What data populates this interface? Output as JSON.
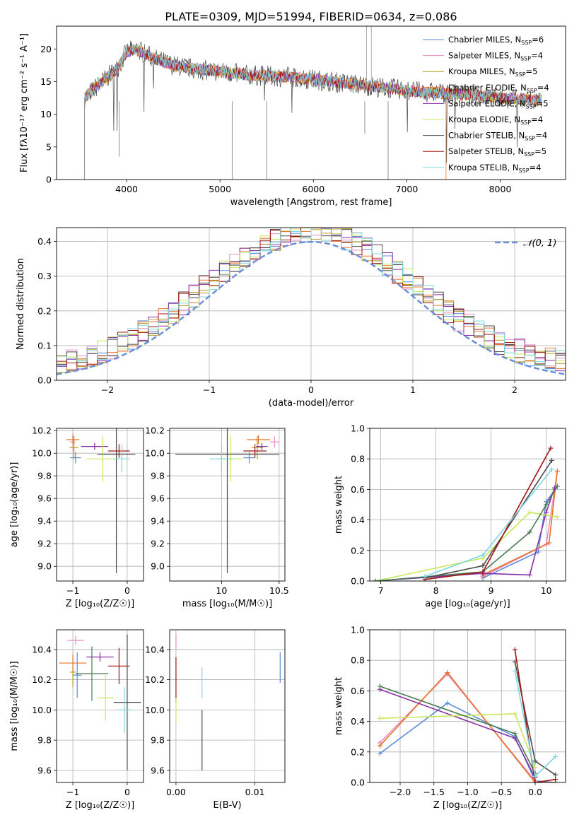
{
  "title": "PLATE=0309, MJD=51994, FIBERID=0634, z=0.086",
  "colors": {
    "chabrier_miles": "#5b8bd9",
    "salpeter_miles": "#e98cc6",
    "kroupa_miles": "#b59a1d",
    "chabrier_elodie": "#e8742a",
    "salpeter_elodie": "#8a2ea8",
    "kroupa_elodie": "#c8e85a",
    "chabrier_stelib": "#4a4a4a",
    "salpeter_stelib": "#a01414",
    "kroupa_stelib": "#7fd6e0",
    "hist_gauss": "#6a8fd8",
    "green_series": "#4a7a52"
  },
  "chart_data": [
    {
      "id": "spectrum",
      "type": "line",
      "xlabel": "wavelength [Angstrom, rest frame]",
      "ylabel": "Flux [fλ10⁻¹⁷ erg cm⁻² s⁻¹ A⁻¹]",
      "xlim": [
        3250,
        8700
      ],
      "ylim": [
        0,
        23.5
      ],
      "xticks": [
        4000,
        5000,
        6000,
        7000,
        8000
      ],
      "yticks": [
        0,
        5,
        10,
        15,
        20
      ],
      "grid": false,
      "legend_position": "top-right",
      "legend": [
        "Chabrier MILES, N_SSP=6",
        "Salpeter MILES, N_SSP=4",
        "Kroupa MILES, N_SSP=5",
        "Chabrier ELODIE, N_SSP=4",
        "Salpeter ELODIE, N_SSP=5",
        "Kroupa ELODIE, N_SSP=4",
        "Chabrier STELIB, N_SSP=4",
        "Salpeter STELIB, N_SSP=5",
        "Kroupa STELIB, N_SSP=4"
      ],
      "envelope": {
        "x": [
          3550,
          3700,
          3900,
          4000,
          4100,
          4300,
          4500,
          4700,
          5000,
          5300,
          5600,
          5900,
          6200,
          6500,
          6800,
          7100,
          7400,
          7700,
          8000,
          8200,
          8400
        ],
        "y": [
          12.5,
          14.5,
          17.0,
          19.5,
          20.0,
          18.5,
          17.5,
          17.0,
          16.5,
          16.0,
          15.8,
          15.5,
          15.0,
          14.5,
          14.0,
          13.5,
          13.2,
          13.0,
          12.5,
          12.3,
          12.2
        ]
      }
    },
    {
      "id": "residuals",
      "type": "histogram",
      "xlabel": "(data-model)/error",
      "ylabel": "Normed distribution",
      "xlim": [
        -2.5,
        2.5
      ],
      "ylim": [
        0,
        0.44
      ],
      "xticks": [
        -2,
        -1,
        0,
        1,
        2
      ],
      "yticks": [
        0.0,
        0.1,
        0.2,
        0.3,
        0.4
      ],
      "grid": true,
      "legend": [
        "𝒩(0, 1)"
      ],
      "legend_position": "top-right",
      "gaussian": {
        "mean": 0,
        "sigma": 1
      }
    },
    {
      "id": "age_vs_Z",
      "type": "scatter",
      "xlabel": "Z [log₁₀(Z/Z☉)]",
      "ylabel": "age  [log₁₀(age/yr)]",
      "xlim": [
        -1.3,
        0.3
      ],
      "ylim": [
        8.87,
        10.22
      ],
      "xticks": [
        -1,
        0
      ],
      "yticks": [
        9.0,
        9.2,
        9.4,
        9.6,
        9.8,
        10.0,
        10.2
      ],
      "grid": true,
      "points": [
        {
          "c": "chabrier_miles",
          "x": -0.95,
          "y": 9.96,
          "xe": 0.1,
          "ye": 0.05
        },
        {
          "c": "salpeter_miles",
          "x": -1.0,
          "y": 10.1,
          "xe": 0.05,
          "ye": 0.08
        },
        {
          "c": "kroupa_miles",
          "x": -0.98,
          "y": 10.05,
          "xe": 0.08,
          "ye": 0.1
        },
        {
          "c": "chabrier_elodie",
          "x": -1.0,
          "y": 10.12,
          "xe": 0.12,
          "ye": 0.04
        },
        {
          "c": "salpeter_elodie",
          "x": -0.6,
          "y": 10.06,
          "xe": 0.25,
          "ye": 0.03
        },
        {
          "c": "kroupa_elodie",
          "x": -0.45,
          "y": 9.95,
          "xe": 0.3,
          "ye": 0.2
        },
        {
          "c": "chabrier_stelib",
          "x": -0.2,
          "y": 9.99,
          "xe": 0.35,
          "ye": 1.05
        },
        {
          "c": "salpeter_stelib",
          "x": -0.15,
          "y": 10.02,
          "xe": 0.2,
          "ye": 0.06
        },
        {
          "c": "kroupa_stelib",
          "x": -0.1,
          "y": 9.95,
          "xe": 0.15,
          "ye": 0.12
        }
      ]
    },
    {
      "id": "age_vs_mass",
      "type": "scatter",
      "xlabel": "mass [log₁₀(M/M☉)]",
      "ylabel": "",
      "xlim": [
        9.55,
        10.55
      ],
      "ylim": [
        8.87,
        10.22
      ],
      "xticks": [
        10.0,
        10.5
      ],
      "yticks": [
        9.0,
        9.2,
        9.4,
        9.6,
        9.8,
        10.0,
        10.2
      ],
      "grid": true,
      "points": [
        {
          "c": "chabrier_miles",
          "x": 10.24,
          "y": 9.96,
          "xe": 0.05,
          "ye": 0.05
        },
        {
          "c": "salpeter_miles",
          "x": 10.46,
          "y": 10.1,
          "xe": 0.04,
          "ye": 0.05
        },
        {
          "c": "kroupa_miles",
          "x": 10.31,
          "y": 10.05,
          "xe": 0.05,
          "ye": 0.1
        },
        {
          "c": "chabrier_elodie",
          "x": 10.32,
          "y": 10.12,
          "xe": 0.1,
          "ye": 0.04
        },
        {
          "c": "salpeter_elodie",
          "x": 10.35,
          "y": 10.06,
          "xe": 0.05,
          "ye": 0.03
        },
        {
          "c": "kroupa_elodie",
          "x": 10.08,
          "y": 9.95,
          "xe": 0.1,
          "ye": 0.2
        },
        {
          "c": "chabrier_stelib",
          "x": 10.05,
          "y": 9.99,
          "xe": 0.45,
          "ye": 1.05
        },
        {
          "c": "salpeter_stelib",
          "x": 10.29,
          "y": 10.02,
          "xe": 0.1,
          "ye": 0.06
        },
        {
          "c": "kroupa_stelib",
          "x": 10.0,
          "y": 9.95,
          "xe": 0.1,
          "ye": 0.12
        }
      ]
    },
    {
      "id": "weight_vs_age",
      "type": "line",
      "xlabel": "age  [log₁₀(age/yr)]",
      "ylabel": "mass weight",
      "xlim": [
        6.8,
        10.35
      ],
      "ylim": [
        0,
        1.0
      ],
      "xticks": [
        7,
        8,
        9,
        10
      ],
      "yticks": [
        0.0,
        0.2,
        0.4,
        0.6,
        0.8,
        1.0
      ],
      "grid": true,
      "series": [
        {
          "c": "chabrier_miles",
          "x": [
            8.85,
            9.85,
            10.0,
            10.2
          ],
          "y": [
            0.02,
            0.19,
            0.52,
            0.62
          ]
        },
        {
          "c": "salpeter_miles",
          "x": [
            8.85,
            10.0,
            10.2
          ],
          "y": [
            0.03,
            0.24,
            0.72
          ]
        },
        {
          "c": "chabrier_elodie",
          "x": [
            8.85,
            10.05,
            10.2
          ],
          "y": [
            0.04,
            0.25,
            0.72
          ]
        },
        {
          "c": "salpeter_elodie",
          "x": [
            6.9,
            8.85,
            9.7,
            10.0,
            10.15
          ],
          "y": [
            0.0,
            0.05,
            0.04,
            0.45,
            0.61
          ]
        },
        {
          "c": "kroupa_elodie",
          "x": [
            6.9,
            8.85,
            9.7,
            10.2
          ],
          "y": [
            0.0,
            0.15,
            0.45,
            0.42
          ]
        },
        {
          "c": "green_series",
          "x": [
            6.9,
            8.85,
            9.7,
            10.0,
            10.2
          ],
          "y": [
            0.0,
            0.06,
            0.32,
            0.5,
            0.62
          ]
        },
        {
          "c": "chabrier_stelib",
          "x": [
            7.8,
            8.85,
            10.1
          ],
          "y": [
            0.02,
            0.1,
            0.79
          ]
        },
        {
          "c": "salpeter_stelib",
          "x": [
            7.8,
            8.85,
            10.08
          ],
          "y": [
            0.01,
            0.06,
            0.87
          ]
        },
        {
          "c": "kroupa_stelib",
          "x": [
            7.8,
            8.85,
            10.1
          ],
          "y": [
            0.03,
            0.17,
            0.73
          ]
        }
      ]
    },
    {
      "id": "mass_vs_Z",
      "type": "scatter",
      "xlabel": "Z [log₁₀(Z/Z☉)]",
      "ylabel": "mass [log₁₀(M/M☉)]",
      "xlim": [
        -1.3,
        0.3
      ],
      "ylim": [
        9.52,
        10.53
      ],
      "xticks": [
        -1,
        0
      ],
      "yticks": [
        9.6,
        9.8,
        10.0,
        10.2,
        10.4
      ],
      "grid": true,
      "points": [
        {
          "c": "chabrier_miles",
          "x": -0.92,
          "y": 10.23,
          "xe": 0.08,
          "ye": 0.15
        },
        {
          "c": "salpeter_miles",
          "x": -0.95,
          "y": 10.46,
          "xe": 0.15,
          "ye": 0.03
        },
        {
          "c": "kroupa_miles",
          "x": -1.0,
          "y": 10.25,
          "xe": 0.05,
          "ye": 0.1
        },
        {
          "c": "chabrier_elodie",
          "x": -1.0,
          "y": 10.31,
          "xe": 0.25,
          "ye": 0.06
        },
        {
          "c": "salpeter_elodie",
          "x": -0.5,
          "y": 10.35,
          "xe": 0.25,
          "ye": 0.03
        },
        {
          "c": "kroupa_elodie",
          "x": -0.4,
          "y": 10.08,
          "xe": 0.15,
          "ye": 0.15
        },
        {
          "c": "green_series",
          "x": -0.65,
          "y": 10.24,
          "xe": 0.3,
          "ye": 0.18
        },
        {
          "c": "chabrier_stelib",
          "x": 0.0,
          "y": 10.05,
          "xe": 0.25,
          "ye": 0.45
        },
        {
          "c": "salpeter_stelib",
          "x": -0.15,
          "y": 10.29,
          "xe": 0.2,
          "ye": 0.12
        },
        {
          "c": "kroupa_stelib",
          "x": -0.05,
          "y": 10.0,
          "xe": 0.12,
          "ye": 0.15
        }
      ]
    },
    {
      "id": "mass_vs_ebv",
      "type": "scatter",
      "xlabel": "E(B-V)",
      "ylabel": "",
      "xlim": [
        -0.0008,
        0.0138
      ],
      "ylim": [
        9.52,
        10.53
      ],
      "xticks": [
        0.0,
        0.01
      ],
      "xticklabels": [
        "0.00",
        "0.01"
      ],
      "yticks": [
        9.6,
        9.8,
        10.0,
        10.2,
        10.4
      ],
      "grid": true,
      "points": [
        {
          "c": "salpeter_miles",
          "x": 0.0,
          "y": 10.45,
          "xe": 0,
          "ye": 0.05
        },
        {
          "c": "salpeter_stelib",
          "x": 0.0,
          "y": 10.2,
          "xe": 0,
          "ye": 0.15
        },
        {
          "c": "kroupa_elodie",
          "x": 0.0,
          "y": 10.0,
          "xe": 0,
          "ye": 0.08
        },
        {
          "c": "chabrier_stelib",
          "x": 0.0033,
          "y": 9.8,
          "xe": 0,
          "ye": 0.2
        },
        {
          "c": "kroupa_stelib",
          "x": 0.0033,
          "y": 10.18,
          "xe": 0,
          "ye": 0.1
        },
        {
          "c": "chabrier_miles",
          "x": 0.0132,
          "y": 10.28,
          "xe": 0,
          "ye": 0.1
        }
      ]
    },
    {
      "id": "weight_vs_Z",
      "type": "line",
      "xlabel": "Z [log₁₀(Z/Z☉)]",
      "ylabel": "mass weight",
      "xlim": [
        -2.45,
        0.45
      ],
      "ylim": [
        0,
        1.0
      ],
      "xticks": [
        -2.0,
        -1.5,
        -1.0,
        -0.5,
        0.0
      ],
      "xticklabels": [
        "−2.0",
        "−1.5",
        "−1.0",
        "−0.5",
        "0.0"
      ],
      "yticks": [
        0.0,
        0.2,
        0.4,
        0.6,
        0.8,
        1.0
      ],
      "grid": true,
      "series": [
        {
          "c": "chabrier_miles",
          "x": [
            -2.3,
            -1.3,
            -0.3,
            0.0,
            0.3
          ],
          "y": [
            0.19,
            0.52,
            0.3,
            0.01,
            0.0
          ]
        },
        {
          "c": "salpeter_miles",
          "x": [
            -2.3,
            -1.3,
            -0.0
          ],
          "y": [
            0.26,
            0.71,
            0.01
          ]
        },
        {
          "c": "chabrier_elodie",
          "x": [
            -2.3,
            -1.3,
            0.0,
            0.3
          ],
          "y": [
            0.24,
            0.72,
            0.0,
            0.0
          ]
        },
        {
          "c": "salpeter_elodie",
          "x": [
            -2.3,
            -0.3,
            0.0
          ],
          "y": [
            0.61,
            0.29,
            0.03
          ]
        },
        {
          "c": "kroupa_elodie",
          "x": [
            -2.3,
            -0.3,
            0.0
          ],
          "y": [
            0.42,
            0.45,
            0.1
          ]
        },
        {
          "c": "green_series",
          "x": [
            -2.3,
            -0.3,
            0.0
          ],
          "y": [
            0.63,
            0.32,
            0.06
          ]
        },
        {
          "c": "chabrier_stelib",
          "x": [
            -0.3,
            0.0,
            0.3
          ],
          "y": [
            0.79,
            0.14,
            0.05
          ]
        },
        {
          "c": "salpeter_stelib",
          "x": [
            -0.3,
            0.0,
            0.3
          ],
          "y": [
            0.87,
            0.0,
            0.02
          ]
        },
        {
          "c": "kroupa_stelib",
          "x": [
            -0.3,
            0.0,
            0.3
          ],
          "y": [
            0.73,
            0.04,
            0.17
          ]
        }
      ]
    }
  ]
}
